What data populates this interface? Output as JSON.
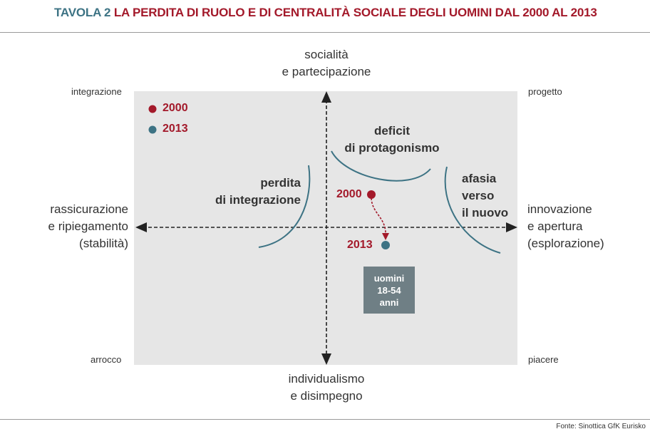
{
  "header": {
    "label": "TAVOLA 2",
    "title": "LA PERDITA DI RUOLO E DI CENTRALITÀ SOCIALE DEGLI UOMINI DAL 2000 AL 2013"
  },
  "axes": {
    "top": [
      "socialità",
      "e partecipazione"
    ],
    "bottom": [
      "individualismo",
      "e disimpegno"
    ],
    "left": [
      "rassicurazione",
      "e ripiegamento",
      "(stabilità)"
    ],
    "right": [
      "innovazione",
      "e apertura",
      "(esplorazione)"
    ]
  },
  "corners": {
    "top_left": "integrazione",
    "top_right": "progetto",
    "bottom_left": "arrocco",
    "bottom_right": "piacere"
  },
  "zones": {
    "deficit": [
      "deficit",
      "di protagonismo"
    ],
    "perdita": [
      "perdita",
      "di integrazione"
    ],
    "afasia": [
      "afasia",
      "verso",
      "il nuovo"
    ]
  },
  "legend": [
    {
      "label": "2000",
      "color": "#a3192a"
    },
    {
      "label": "2013",
      "color": "#3d7384"
    }
  ],
  "points": [
    {
      "label": "2000",
      "color": "#a3192a"
    },
    {
      "label": "2013",
      "color": "#3d7384"
    }
  ],
  "group_box": [
    "uomini",
    "18-54",
    "anni"
  ],
  "colors": {
    "accent_red": "#a3192a",
    "accent_teal": "#3d7384",
    "plot_bg": "#e6e6e6",
    "box_bg": "#6f7f85"
  },
  "source": "Fonte: Sinottica GfK Eurisko"
}
